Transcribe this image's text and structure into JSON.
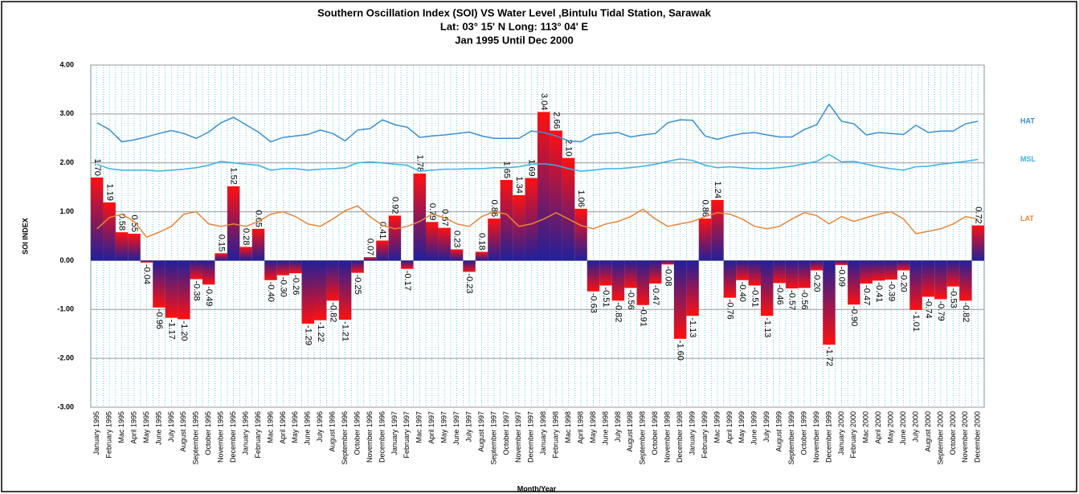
{
  "chart_data": {
    "type": "bar",
    "title": "Southern Oscillation Index (SOI) VS  Water Level ,Bintulu Tidal Station,  Sarawak",
    "subtitle": "Lat: 03° 15' N Long: 113° 04' E",
    "subtitle2": "Jan 1995 Until Dec 2000",
    "y_label": "SOI INDEX",
    "x_label": "Month/Year",
    "categories": [
      "January 1995",
      "February 1995",
      "Mac 1995",
      "April 1995",
      "May 1995",
      "June 1995",
      "July 1995",
      "August 1995",
      "September 1995",
      "October 1995",
      "November 1995",
      "December 1995",
      "January 1996",
      "February 1996",
      "Mac 1996",
      "April 1996",
      "May 1996",
      "June 1996",
      "July 1996",
      "August 1996",
      "September 1996",
      "October 1996",
      "November 1996",
      "December 1996",
      "January 1997",
      "February 1997",
      "Mac 1997",
      "April 1997",
      "May 1997",
      "June 1997",
      "July 1997",
      "August 1997",
      "September 1997",
      "October 1997",
      "November 1997",
      "December 1997",
      "January 1998",
      "February 1998",
      "Mac 1998",
      "April 1998",
      "May 1998",
      "June 1998",
      "July 1998",
      "August 1998",
      "September 1998",
      "October 1998",
      "November 1998",
      "December 1998",
      "January 1999",
      "February 1999",
      "Mac 1999",
      "April 1999",
      "May 1999",
      "June 1999",
      "July 1999",
      "August 1999",
      "September 1999",
      "October 1999",
      "November 1999",
      "December 1999",
      "January 2000",
      "February 2000",
      "Mac 2000",
      "April 2000",
      "May 2000",
      "June 2000",
      "July 2000",
      "August 2000",
      "September 2000",
      "October 2000",
      "November 2000",
      "December 2000"
    ],
    "values": [
      1.7,
      1.19,
      0.58,
      0.55,
      -0.04,
      -0.96,
      -1.17,
      -1.2,
      -0.38,
      -0.49,
      0.15,
      1.52,
      0.28,
      0.65,
      -0.4,
      -0.3,
      -0.26,
      -1.29,
      -1.22,
      -0.82,
      -1.21,
      -0.25,
      0.07,
      0.41,
      0.92,
      -0.17,
      1.78,
      0.79,
      0.67,
      0.23,
      -0.23,
      0.18,
      0.86,
      1.65,
      1.34,
      1.69,
      3.04,
      2.66,
      2.1,
      1.06,
      -0.63,
      -0.51,
      -0.82,
      -0.56,
      -0.91,
      -0.47,
      -0.08,
      -1.6,
      -1.13,
      0.86,
      1.24,
      -0.76,
      -0.4,
      -0.51,
      -1.13,
      -0.46,
      -0.57,
      -0.56,
      -0.2,
      -1.72,
      -0.09,
      -0.9,
      -0.47,
      -0.41,
      -0.39,
      -0.2,
      -1.01,
      -0.74,
      -0.79,
      -0.53,
      -0.82,
      0.72
    ],
    "value_labels": [
      "1.70",
      "1.19",
      "0.58",
      "0.55",
      "-0.04",
      "-0.96",
      "-1.17",
      "-1.20",
      "-0.38",
      "-0.49",
      "0.15",
      "1.52",
      "0.28",
      "0.65",
      "-0.40",
      "-0.30",
      "-0.26",
      "-1.29",
      "-1.22",
      "-0.82",
      "-1.21",
      "-0.25",
      "0.07",
      "0.41",
      "0.92",
      "-0.17",
      "1.78",
      "0.79",
      "0.67",
      "0.23",
      "-0.23",
      "0.18",
      "0.86",
      "1.65",
      "1.34",
      "1.69",
      "3.04",
      "2.66",
      "2.10",
      "1.06",
      "-0.63",
      "-0.51",
      "-0.82",
      "-0.56",
      "-0.91",
      "-0.47",
      "-0.08",
      "-1.60",
      "-1.13",
      "0.86",
      "1.24",
      "-0.76",
      "-0.40",
      "-0.51",
      "-1.13",
      "-0.46",
      "-0.57",
      "-0.56",
      "-0.20",
      "-1.72",
      "-0.09",
      "-0.90",
      "-0.47",
      "-0.41",
      "-0.39",
      "-0.20",
      "-1.01",
      "-0.74",
      "-0.79",
      "-0.53",
      "-0.82",
      "0.72"
    ],
    "bar_colors": [
      "#ff1010",
      "#20209a"
    ],
    "series": [
      {
        "name": "HAT",
        "color": "#3a8fd0",
        "values": [
          2.82,
          2.68,
          2.43,
          2.47,
          2.53,
          2.6,
          2.66,
          2.6,
          2.5,
          2.63,
          2.82,
          2.93,
          2.78,
          2.63,
          2.43,
          2.52,
          2.55,
          2.58,
          2.67,
          2.6,
          2.45,
          2.67,
          2.7,
          2.88,
          2.78,
          2.73,
          2.52,
          2.55,
          2.57,
          2.6,
          2.63,
          2.55,
          2.5,
          2.5,
          2.5,
          2.65,
          2.62,
          2.55,
          2.45,
          2.43,
          2.57,
          2.6,
          2.62,
          2.53,
          2.57,
          2.6,
          2.82,
          2.88,
          2.87,
          2.55,
          2.48,
          2.55,
          2.6,
          2.62,
          2.57,
          2.53,
          2.53,
          2.68,
          2.78,
          3.2,
          2.85,
          2.8,
          2.57,
          2.62,
          2.6,
          2.58,
          2.77,
          2.62,
          2.65,
          2.65,
          2.8,
          2.85
        ]
      },
      {
        "name": "MSL",
        "color": "#3bb0e6",
        "values": [
          1.97,
          1.88,
          1.85,
          1.85,
          1.85,
          1.83,
          1.85,
          1.87,
          1.9,
          1.95,
          2.03,
          2.0,
          1.97,
          1.95,
          1.85,
          1.88,
          1.88,
          1.85,
          1.87,
          1.88,
          1.9,
          2.0,
          2.02,
          2.0,
          1.97,
          1.95,
          1.83,
          1.85,
          1.87,
          1.87,
          1.88,
          1.88,
          1.9,
          1.9,
          1.92,
          1.97,
          1.98,
          1.95,
          1.88,
          1.83,
          1.85,
          1.88,
          1.88,
          1.9,
          1.93,
          1.97,
          2.03,
          2.08,
          2.05,
          1.95,
          1.9,
          1.92,
          1.9,
          1.88,
          1.88,
          1.9,
          1.93,
          1.98,
          2.03,
          2.17,
          2.02,
          2.03,
          1.97,
          1.92,
          1.88,
          1.85,
          1.92,
          1.93,
          1.97,
          2.0,
          2.03,
          2.07
        ]
      },
      {
        "name": "LAT",
        "color": "#e8863a",
        "values": [
          0.65,
          0.88,
          0.95,
          0.8,
          0.48,
          0.58,
          0.7,
          0.95,
          1.0,
          0.75,
          0.7,
          0.75,
          0.7,
          0.8,
          0.95,
          1.0,
          0.9,
          0.75,
          0.7,
          0.85,
          1.02,
          1.12,
          0.9,
          0.72,
          0.65,
          0.7,
          0.8,
          0.95,
          0.88,
          0.75,
          0.7,
          0.9,
          1.0,
          0.95,
          0.7,
          0.75,
          0.85,
          0.98,
          0.85,
          0.72,
          0.65,
          0.75,
          0.8,
          0.9,
          1.05,
          0.85,
          0.7,
          0.75,
          0.8,
          0.9,
          0.98,
          0.95,
          0.85,
          0.7,
          0.65,
          0.7,
          0.85,
          0.98,
          0.92,
          0.75,
          0.9,
          0.8,
          0.88,
          0.95,
          1.0,
          0.85,
          0.55,
          0.6,
          0.65,
          0.75,
          0.9,
          0.85
        ]
      }
    ],
    "ylim": [
      -3,
      4
    ],
    "yticks": [
      {
        "value": -3,
        "label": "-3.00"
      },
      {
        "value": -2,
        "label": "-2.00"
      },
      {
        "value": -1,
        "label": "-1.00"
      },
      {
        "value": 0,
        "label": "0.00"
      },
      {
        "value": 1,
        "label": "1.00"
      },
      {
        "value": 2,
        "label": "2.00"
      },
      {
        "value": 3,
        "label": "3.00"
      },
      {
        "value": 4,
        "label": "4.00"
      }
    ],
    "grid": true
  }
}
